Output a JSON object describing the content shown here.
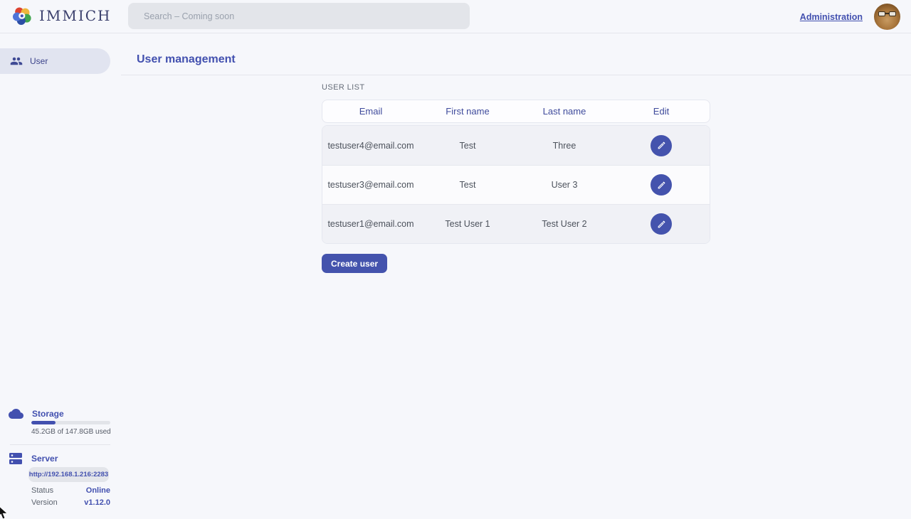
{
  "app": {
    "name": "IMMICH"
  },
  "colors": {
    "primary": "#4250af",
    "background": "#f6f7fb",
    "row_alt": "#f0f1f6",
    "status_online": "#4250af"
  },
  "header": {
    "logo_icon": "immich-flower-icon",
    "wordmark": "IMMICH",
    "search_placeholder": "Search – Coming soon",
    "admin_link": "Administration",
    "avatar_icon": "user-avatar-photo"
  },
  "sidebar": {
    "items": [
      {
        "label": "User",
        "icon": "people-icon",
        "active": true
      }
    ],
    "storage": {
      "icon": "cloud-icon",
      "title": "Storage",
      "usage_text": "45.2GB of 147.8GB used",
      "percent_used": 30.6
    },
    "server_info": {
      "icon": "server-icon",
      "title": "Server",
      "url": "http://192.168.1.216:2283",
      "status_label": "Status",
      "status_value": "Online",
      "version_label": "Version",
      "version_value": "v1.12.0"
    }
  },
  "main": {
    "page_title": "User management",
    "section_label": "USER LIST",
    "table": {
      "columns": [
        "Email",
        "First name",
        "Last name",
        "Edit"
      ],
      "edit_icon": "pencil-icon",
      "rows": [
        {
          "email": "testuser4@email.com",
          "first_name": "Test",
          "last_name": "Three"
        },
        {
          "email": "testuser3@email.com",
          "first_name": "Test",
          "last_name": "User 3"
        },
        {
          "email": "testuser1@email.com",
          "first_name": "Test User 1",
          "last_name": "Test User 2"
        }
      ]
    },
    "create_button": "Create user"
  }
}
